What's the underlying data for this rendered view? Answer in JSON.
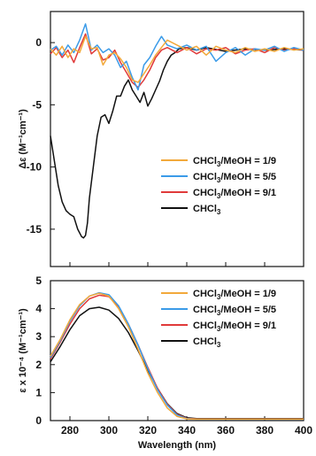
{
  "chart_data": [
    {
      "type": "line",
      "ylabel": "Δε (M⁻¹cm⁻¹)",
      "xlim": [
        270,
        400
      ],
      "ylim": [
        -18,
        2.5
      ],
      "yticks": [
        0,
        -5,
        -10,
        -15
      ],
      "xticks": [
        280,
        300,
        320,
        340,
        360,
        380,
        400
      ],
      "show_x_tick_labels": false,
      "legend_position": "bottom-right",
      "series": [
        {
          "name": "CHCl3/MeOH = 1/9",
          "color": "#f2a93b",
          "x": [
            270,
            273,
            276,
            279,
            282,
            285,
            288,
            291,
            294,
            297,
            300,
            303,
            306,
            309,
            312,
            315,
            318,
            321,
            324,
            327,
            330,
            335,
            340,
            345,
            350,
            355,
            360,
            365,
            370,
            375,
            380,
            385,
            390,
            395,
            400
          ],
          "y": [
            -0.5,
            -1.0,
            -0.3,
            -1.2,
            -0.5,
            -0.8,
            0.5,
            -0.5,
            -0.4,
            -1.8,
            -1.0,
            -0.8,
            -1.3,
            -2.0,
            -3.0,
            -3.2,
            -2.5,
            -1.8,
            -1.0,
            -0.4,
            0.2,
            -0.2,
            -0.6,
            -0.3,
            -1.0,
            -0.3,
            -0.6,
            -0.8,
            -0.4,
            -0.7,
            -0.5,
            -0.7,
            -0.4,
            -0.6,
            -0.5
          ]
        },
        {
          "name": "CHCl3/MeOH = 5/5",
          "color": "#3b9be8",
          "x": [
            270,
            273,
            276,
            279,
            282,
            285,
            288,
            291,
            294,
            297,
            300,
            303,
            306,
            309,
            312,
            315,
            318,
            321,
            324,
            327,
            330,
            335,
            340,
            345,
            350,
            355,
            360,
            365,
            370,
            375,
            380,
            385,
            390,
            395,
            400
          ],
          "y": [
            -0.6,
            -0.3,
            -1.0,
            -0.2,
            -0.8,
            0.2,
            1.5,
            -0.6,
            -0.2,
            -0.8,
            -0.5,
            -1.0,
            -2.0,
            -1.5,
            -2.8,
            -3.8,
            -1.8,
            -1.2,
            -0.3,
            0.5,
            -0.2,
            -0.5,
            -0.2,
            -0.6,
            -0.3,
            -1.5,
            -0.8,
            -0.4,
            -1.0,
            -0.5,
            -0.6,
            -0.3,
            -0.7,
            -0.4,
            -0.6
          ]
        },
        {
          "name": "CHCl3/MeOH = 9/1",
          "color": "#e03a3a",
          "x": [
            270,
            273,
            276,
            279,
            282,
            285,
            288,
            291,
            294,
            297,
            300,
            303,
            306,
            309,
            312,
            315,
            318,
            321,
            324,
            327,
            330,
            335,
            340,
            345,
            350,
            355,
            360,
            365,
            370,
            375,
            380,
            385,
            390,
            395,
            400
          ],
          "y": [
            -0.9,
            -0.4,
            -1.2,
            -0.6,
            -1.6,
            -0.4,
            0.7,
            -0.9,
            -0.5,
            -1.4,
            -1.2,
            -0.6,
            -1.6,
            -2.4,
            -3.2,
            -3.6,
            -3.0,
            -2.2,
            -1.2,
            -0.6,
            -0.4,
            -0.8,
            -0.4,
            -0.9,
            -0.5,
            -0.6,
            -0.4,
            -0.9,
            -0.6,
            -0.5,
            -0.8,
            -0.4,
            -0.6,
            -0.5,
            -0.6
          ]
        },
        {
          "name": "CHCl3",
          "color": "#111111",
          "x": [
            270,
            272,
            274,
            276,
            278,
            280,
            282,
            284,
            286,
            287,
            288,
            289,
            290,
            292,
            294,
            296,
            298,
            300,
            302,
            304,
            306,
            308,
            310,
            312,
            314,
            316,
            318,
            320,
            322,
            324,
            326,
            328,
            330,
            332,
            334,
            336,
            340,
            345,
            350,
            360,
            370,
            380,
            390,
            400
          ],
          "y": [
            -7.5,
            -9.5,
            -11.5,
            -12.8,
            -13.5,
            -13.8,
            -14.0,
            -15.0,
            -15.6,
            -15.7,
            -15.5,
            -14.5,
            -12.5,
            -10.0,
            -7.5,
            -6.0,
            -5.8,
            -6.5,
            -5.5,
            -4.3,
            -4.3,
            -3.5,
            -3.0,
            -3.8,
            -4.3,
            -4.8,
            -4.0,
            -5.1,
            -4.5,
            -3.8,
            -3.1,
            -2.2,
            -1.5,
            -1.0,
            -0.8,
            -0.5,
            -0.4,
            -0.6,
            -0.4,
            -0.7,
            -0.5,
            -0.6,
            -0.5,
            -0.6
          ]
        }
      ]
    },
    {
      "type": "line",
      "xlabel": "Wavelength (nm)",
      "ylabel": "ε x 10⁻⁴ (M⁻¹cm⁻¹)",
      "xlim": [
        270,
        400
      ],
      "ylim": [
        0,
        5
      ],
      "yticks": [
        0,
        1,
        2,
        3,
        4,
        5
      ],
      "xticks": [
        280,
        300,
        320,
        340,
        360,
        380,
        400
      ],
      "legend_position": "top-right",
      "series": [
        {
          "name": "CHCl3/MeOH = 1/9",
          "color": "#f2a93b",
          "x": [
            270,
            275,
            280,
            285,
            290,
            295,
            300,
            305,
            310,
            315,
            320,
            325,
            330,
            335,
            340,
            345,
            350,
            360,
            370,
            380,
            390,
            400
          ],
          "y": [
            2.3,
            2.9,
            3.6,
            4.15,
            4.45,
            4.55,
            4.45,
            4.0,
            3.35,
            2.55,
            1.7,
            1.0,
            0.45,
            0.15,
            0.06,
            0.05,
            0.05,
            0.05,
            0.05,
            0.05,
            0.05,
            0.05
          ]
        },
        {
          "name": "CHCl3/MeOH = 5/5",
          "color": "#3b9be8",
          "x": [
            270,
            275,
            280,
            285,
            290,
            295,
            300,
            305,
            310,
            315,
            320,
            325,
            330,
            335,
            340,
            345,
            350,
            360,
            370,
            380,
            390,
            400
          ],
          "y": [
            2.25,
            2.85,
            3.55,
            4.1,
            4.45,
            4.57,
            4.5,
            4.1,
            3.45,
            2.7,
            1.85,
            1.1,
            0.55,
            0.2,
            0.07,
            0.05,
            0.05,
            0.05,
            0.05,
            0.05,
            0.05,
            0.05
          ]
        },
        {
          "name": "CHCl3/MeOH = 9/1",
          "color": "#e03a3a",
          "x": [
            270,
            275,
            280,
            285,
            290,
            295,
            300,
            305,
            310,
            315,
            320,
            325,
            330,
            335,
            340,
            345,
            350,
            360,
            370,
            380,
            390,
            400
          ],
          "y": [
            2.2,
            2.8,
            3.45,
            4.0,
            4.35,
            4.48,
            4.43,
            4.08,
            3.45,
            2.7,
            1.9,
            1.15,
            0.58,
            0.22,
            0.08,
            0.06,
            0.06,
            0.06,
            0.06,
            0.06,
            0.06,
            0.06
          ]
        },
        {
          "name": "CHCl3",
          "color": "#111111",
          "x": [
            270,
            275,
            280,
            285,
            290,
            295,
            300,
            305,
            310,
            315,
            320,
            325,
            330,
            335,
            340,
            345,
            350,
            360,
            370,
            380,
            390,
            400
          ],
          "y": [
            2.1,
            2.65,
            3.25,
            3.75,
            4.0,
            4.05,
            3.95,
            3.65,
            3.15,
            2.5,
            1.8,
            1.15,
            0.6,
            0.25,
            0.1,
            0.07,
            0.07,
            0.07,
            0.07,
            0.07,
            0.07,
            0.07
          ]
        }
      ]
    }
  ]
}
